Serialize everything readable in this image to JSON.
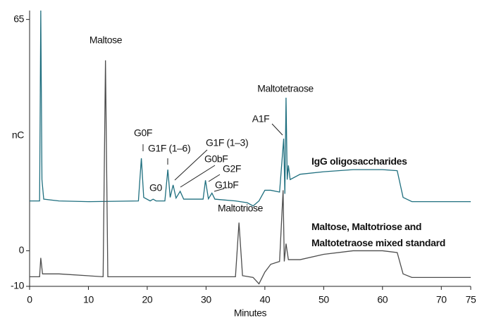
{
  "chart_data": {
    "type": "line",
    "x_label": "Minutes",
    "y_label": "nC",
    "xlim": [
      0,
      75
    ],
    "ylim": [
      -10,
      67.5
    ],
    "xticks": [
      0,
      10,
      20,
      30,
      40,
      50,
      60,
      70,
      75
    ],
    "yticks": [
      -10,
      0,
      65
    ],
    "series": [
      {
        "name": "IgG oligosaccharides",
        "color": "#1f6f7f",
        "x": [
          0,
          1.7,
          1.9,
          2.1,
          2.4,
          5,
          10,
          18.5,
          19,
          19.4,
          20.5,
          21,
          21.5,
          23,
          23.5,
          23.9,
          24.4,
          24.9,
          25.6,
          26.2,
          29.5,
          29.9,
          30.4,
          31,
          31.5,
          35,
          37,
          38,
          39,
          40,
          41,
          42.5,
          43.2,
          43.4,
          43.6,
          43.8,
          44,
          44.3,
          46,
          50,
          55,
          60,
          62.5,
          63.5,
          65,
          75
        ],
        "values": [
          14,
          14,
          67.5,
          20,
          14.5,
          14,
          13.8,
          14,
          26,
          15,
          14,
          14.5,
          14,
          14,
          22.8,
          15,
          18.5,
          14.8,
          16.7,
          14.5,
          14.5,
          19.8,
          14.6,
          16.2,
          14.5,
          14,
          13.5,
          12.6,
          14,
          17,
          17,
          16.5,
          31.5,
          16,
          43,
          20,
          24,
          20,
          21.5,
          22.2,
          22.8,
          22.8,
          22.5,
          15,
          13.8,
          13.8
        ]
      },
      {
        "name": "Maltose, Maltotriose and Maltotetraose mixed standard",
        "color": "#4d4d4d",
        "x": [
          0,
          1.7,
          1.9,
          2.2,
          5,
          12.5,
          12.9,
          13.3,
          35,
          35.6,
          36.2,
          38,
          39,
          40,
          41,
          42.5,
          43.1,
          43.3,
          43.6,
          44,
          46,
          50,
          55,
          60,
          62.5,
          63.5,
          65,
          75
        ],
        "values": [
          -7.3,
          -7.3,
          -2,
          -6.5,
          -6.5,
          -7.3,
          53.5,
          -7.3,
          -7.3,
          7.9,
          -7,
          -7.5,
          -9.3,
          -6,
          -3.8,
          -3,
          17,
          -3,
          2,
          -2.5,
          -2.5,
          -1,
          0,
          0,
          -0.5,
          -6.5,
          -7.5,
          -7.5
        ]
      }
    ],
    "annotations": [
      "Maltose",
      "G0F",
      "G1F (1–6)",
      "G0",
      "G1F (1–3)",
      "G0bF",
      "G2F",
      "G1bF",
      "Maltotriose",
      "A1F",
      "Maltotetraose"
    ]
  }
}
